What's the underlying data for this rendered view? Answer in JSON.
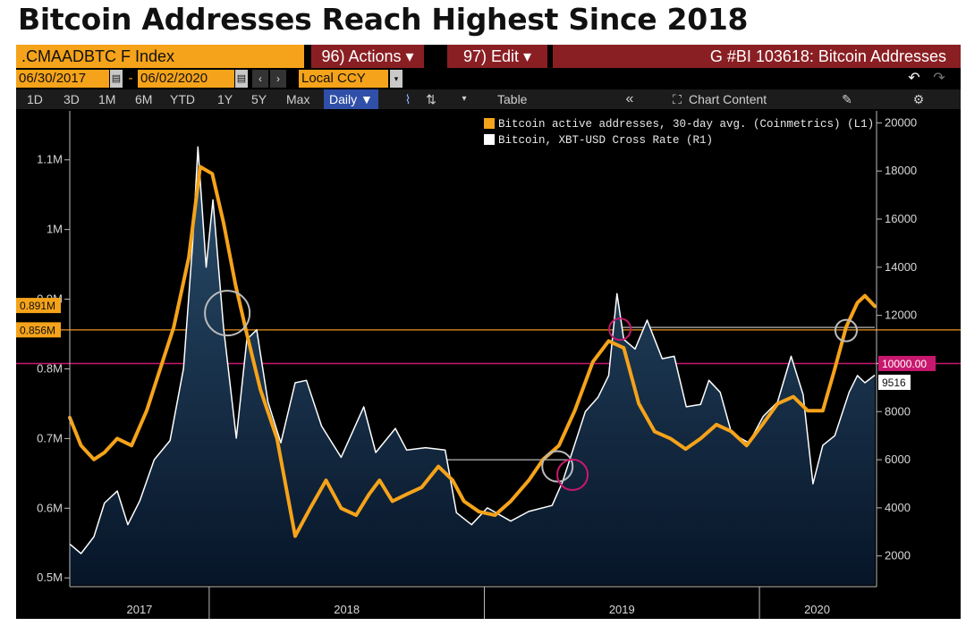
{
  "headline": "Bitcoin Addresses Reach Highest Since 2018",
  "toolbar": {
    "ticker": ".CMAADBTC F Index",
    "actions_label": "96) Actions ▾",
    "edit_label": "97) Edit ▾",
    "chart_title": "G #BI 103618: Bitcoin Addresses",
    "start_date": "06/30/2017",
    "end_date": "06/02/2020",
    "date_separator": "-",
    "currency": "Local CCY",
    "periods": [
      "1D",
      "3D",
      "1M",
      "6M",
      "YTD",
      "1Y",
      "5Y",
      "Max"
    ],
    "frequency": "Daily ▼",
    "table_label": "Table",
    "chart_content_label": "Chart Content"
  },
  "colors": {
    "addresses": "#f5a31a",
    "price": "#ffffff",
    "area_top": "#2b4f6e",
    "area_bottom": "#071528",
    "orange_ref": "#c87a14",
    "magenta_ref": "#c8186e",
    "grey_ref": "#9a9a9a"
  },
  "chart_data": {
    "type": "line",
    "legend": [
      "Bitcoin active addresses, 30-day avg. (Coinmetrics) (L1)",
      "Bitcoin, XBT-USD Cross Rate (R1)"
    ],
    "x_labels": [
      "2017",
      "2018",
      "2019",
      "2020"
    ],
    "x_range": [
      "2017-06-30",
      "2020-06-02"
    ],
    "y_left": {
      "ticks": [
        {
          "v": 500000,
          "label": "0.5M"
        },
        {
          "v": 600000,
          "label": "0.6M"
        },
        {
          "v": 700000,
          "label": "0.7M"
        },
        {
          "v": 800000,
          "label": "0.8M"
        },
        {
          "v": 900000,
          "label": "0.9M"
        },
        {
          "v": 1000000,
          "label": "1M"
        },
        {
          "v": 1100000,
          "label": "1.1M"
        }
      ],
      "range": [
        490000,
        1160000
      ]
    },
    "y_right": {
      "ticks": [
        2000,
        4000,
        6000,
        8000,
        10000,
        12000,
        14000,
        16000,
        18000,
        20000
      ],
      "range": [
        800,
        20200
      ]
    },
    "series": [
      {
        "name": "Bitcoin active addresses, 30-day avg. (Coinmetrics) (L1)",
        "axis": "left",
        "points": [
          [
            "2017-06-30",
            730000
          ],
          [
            "2017-07-15",
            690000
          ],
          [
            "2017-08-01",
            670000
          ],
          [
            "2017-08-15",
            680000
          ],
          [
            "2017-09-01",
            700000
          ],
          [
            "2017-09-20",
            690000
          ],
          [
            "2017-10-10",
            740000
          ],
          [
            "2017-10-25",
            790000
          ],
          [
            "2017-11-15",
            860000
          ],
          [
            "2017-12-05",
            960000
          ],
          [
            "2017-12-20",
            1090000
          ],
          [
            "2018-01-05",
            1080000
          ],
          [
            "2018-01-20",
            1010000
          ],
          [
            "2018-02-05",
            920000
          ],
          [
            "2018-02-20",
            850000
          ],
          [
            "2018-03-10",
            770000
          ],
          [
            "2018-04-01",
            700000
          ],
          [
            "2018-04-25",
            560000
          ],
          [
            "2018-05-15",
            600000
          ],
          [
            "2018-06-05",
            640000
          ],
          [
            "2018-06-25",
            600000
          ],
          [
            "2018-07-15",
            590000
          ],
          [
            "2018-08-01",
            620000
          ],
          [
            "2018-08-15",
            640000
          ],
          [
            "2018-09-01",
            610000
          ],
          [
            "2018-09-20",
            620000
          ],
          [
            "2018-10-10",
            630000
          ],
          [
            "2018-11-01",
            660000
          ],
          [
            "2018-11-20",
            640000
          ],
          [
            "2018-12-05",
            610000
          ],
          [
            "2018-12-25",
            595000
          ],
          [
            "2019-01-15",
            590000
          ],
          [
            "2019-02-05",
            610000
          ],
          [
            "2019-03-01",
            640000
          ],
          [
            "2019-03-20",
            670000
          ],
          [
            "2019-04-10",
            690000
          ],
          [
            "2019-05-01",
            740000
          ],
          [
            "2019-05-25",
            810000
          ],
          [
            "2019-06-15",
            840000
          ],
          [
            "2019-07-05",
            830000
          ],
          [
            "2019-07-25",
            750000
          ],
          [
            "2019-08-15",
            710000
          ],
          [
            "2019-09-05",
            700000
          ],
          [
            "2019-09-25",
            685000
          ],
          [
            "2019-10-15",
            700000
          ],
          [
            "2019-11-05",
            720000
          ],
          [
            "2019-11-25",
            710000
          ],
          [
            "2019-12-15",
            690000
          ],
          [
            "2020-01-05",
            720000
          ],
          [
            "2020-01-25",
            750000
          ],
          [
            "2020-02-15",
            760000
          ],
          [
            "2020-03-05",
            740000
          ],
          [
            "2020-03-25",
            740000
          ],
          [
            "2020-04-10",
            800000
          ],
          [
            "2020-04-25",
            860000
          ],
          [
            "2020-05-10",
            895000
          ],
          [
            "2020-05-20",
            905000
          ],
          [
            "2020-06-02",
            890000
          ]
        ]
      },
      {
        "name": "Bitcoin, XBT-USD Cross Rate (R1)",
        "axis": "right",
        "points": [
          [
            "2017-06-30",
            2500
          ],
          [
            "2017-07-15",
            2100
          ],
          [
            "2017-08-01",
            2800
          ],
          [
            "2017-08-15",
            4200
          ],
          [
            "2017-09-01",
            4700
          ],
          [
            "2017-09-15",
            3300
          ],
          [
            "2017-10-01",
            4300
          ],
          [
            "2017-10-20",
            6000
          ],
          [
            "2017-11-10",
            6800
          ],
          [
            "2017-11-28",
            9800
          ],
          [
            "2017-12-10",
            15000
          ],
          [
            "2017-12-17",
            19000
          ],
          [
            "2017-12-28",
            14000
          ],
          [
            "2018-01-06",
            16800
          ],
          [
            "2018-01-20",
            11500
          ],
          [
            "2018-02-06",
            6900
          ],
          [
            "2018-02-20",
            11000
          ],
          [
            "2018-03-05",
            11400
          ],
          [
            "2018-03-20",
            8400
          ],
          [
            "2018-04-06",
            6700
          ],
          [
            "2018-04-25",
            9200
          ],
          [
            "2018-05-10",
            9300
          ],
          [
            "2018-05-30",
            7400
          ],
          [
            "2018-06-25",
            6100
          ],
          [
            "2018-07-25",
            8200
          ],
          [
            "2018-08-10",
            6300
          ],
          [
            "2018-09-05",
            7300
          ],
          [
            "2018-09-20",
            6400
          ],
          [
            "2018-10-15",
            6500
          ],
          [
            "2018-11-10",
            6400
          ],
          [
            "2018-11-25",
            3800
          ],
          [
            "2018-12-15",
            3300
          ],
          [
            "2019-01-05",
            4000
          ],
          [
            "2019-02-05",
            3450
          ],
          [
            "2019-03-01",
            3850
          ],
          [
            "2019-04-01",
            4100
          ],
          [
            "2019-04-15",
            5100
          ],
          [
            "2019-05-15",
            8000
          ],
          [
            "2019-06-01",
            8600
          ],
          [
            "2019-06-15",
            9500
          ],
          [
            "2019-06-26",
            12900
          ],
          [
            "2019-07-05",
            11000
          ],
          [
            "2019-07-20",
            10600
          ],
          [
            "2019-08-05",
            11800
          ],
          [
            "2019-08-25",
            10200
          ],
          [
            "2019-09-10",
            10300
          ],
          [
            "2019-09-26",
            8200
          ],
          [
            "2019-10-15",
            8300
          ],
          [
            "2019-10-26",
            9300
          ],
          [
            "2019-11-10",
            8800
          ],
          [
            "2019-11-25",
            7100
          ],
          [
            "2019-12-18",
            6700
          ],
          [
            "2020-01-06",
            7800
          ],
          [
            "2020-01-25",
            8400
          ],
          [
            "2020-02-12",
            10300
          ],
          [
            "2020-02-28",
            8700
          ],
          [
            "2020-03-12",
            5000
          ],
          [
            "2020-03-25",
            6600
          ],
          [
            "2020-04-10",
            7000
          ],
          [
            "2020-04-29",
            8800
          ],
          [
            "2020-05-10",
            9500
          ],
          [
            "2020-05-20",
            9200
          ],
          [
            "2020-06-02",
            9516
          ]
        ]
      }
    ],
    "reference_lines": [
      {
        "label": "0.891M",
        "axis": "left",
        "value": 891000,
        "style": "tag"
      },
      {
        "label": "0.856M",
        "axis": "left",
        "value": 856000,
        "style": "line"
      },
      {
        "label": "10000.00",
        "axis": "right",
        "value": 10000,
        "style": "line"
      }
    ],
    "last_price_label": "9516",
    "gray_level_segments": [
      {
        "axis": "right",
        "value": 11500,
        "from": "2019-06-26",
        "to": "2020-06-02"
      },
      {
        "axis": "right",
        "value": 6000,
        "from": "2018-11-01",
        "to": "2019-04-25"
      }
    ],
    "highlight_circles": [
      {
        "date": "2018-01-25",
        "axis": "left",
        "value": 880000,
        "color": "#bbbbbb",
        "size": "large"
      },
      {
        "date": "2019-04-08",
        "axis": "left",
        "value": 660000,
        "color": "#bbbbbb",
        "size": "medium"
      },
      {
        "date": "2019-04-28",
        "axis": "left",
        "value": 648000,
        "color": "#c8186e",
        "size": "medium"
      },
      {
        "date": "2019-06-30",
        "axis": "left",
        "value": 857000,
        "color": "#c8186e",
        "size": "small"
      },
      {
        "date": "2020-04-25",
        "axis": "left",
        "value": 855000,
        "color": "#bbbbbb",
        "size": "small"
      }
    ],
    "grid": false
  }
}
